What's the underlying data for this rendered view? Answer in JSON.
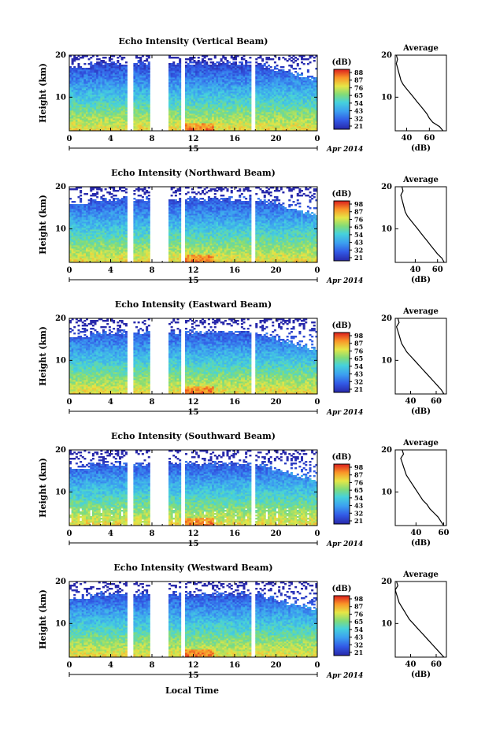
{
  "x_axis_label": "Local Time",
  "chart_data": [
    {
      "type": "heatmap",
      "title": "Echo Intensity (Vertical Beam)",
      "ylabel": "Height (km)",
      "x_ticks": [
        "0",
        "4",
        "8",
        "12",
        "16",
        "20",
        "0"
      ],
      "x_range": [
        0,
        24
      ],
      "date_marker": "15",
      "date_label": "Apr 2014",
      "y_ticks": [
        "20",
        "10"
      ],
      "y_range": [
        2,
        20
      ],
      "data_gaps_hours": [
        [
          5.6,
          6.2
        ],
        [
          7.8,
          9.6
        ],
        [
          10.9,
          11.2
        ],
        [
          17.7,
          17.9
        ]
      ],
      "top_of_data_km": 20,
      "colorbar": {
        "unit": "(dB)",
        "ticks": [
          "88",
          "87",
          "76",
          "65",
          "54",
          "43",
          "32",
          "21"
        ],
        "range": [
          21,
          88
        ]
      },
      "average_profile": {
        "title": "Average",
        "xlabel": "(dB)",
        "x_ticks": [
          "40",
          "60"
        ],
        "x_range": [
          30,
          75
        ],
        "y_ticks": [
          "20",
          "10"
        ],
        "heights_km": [
          2,
          3,
          4,
          5,
          6,
          7,
          8,
          9,
          10,
          11,
          12,
          13,
          14,
          15,
          16,
          17,
          18,
          19,
          20
        ],
        "values_db": [
          72,
          69,
          63,
          60,
          58,
          55,
          52,
          49,
          46,
          43,
          40,
          37,
          35,
          34,
          33,
          32,
          31,
          32,
          31
        ]
      }
    },
    {
      "type": "heatmap",
      "title": "Echo Intensity (Northward Beam)",
      "ylabel": "Height (km)",
      "x_ticks": [
        "0",
        "4",
        "8",
        "12",
        "16",
        "20",
        "0"
      ],
      "x_range": [
        0,
        24
      ],
      "date_marker": "15",
      "date_label": "Apr 2014",
      "y_ticks": [
        "20",
        "10"
      ],
      "y_range": [
        2,
        20
      ],
      "data_gaps_hours": [
        [
          5.6,
          6.2
        ],
        [
          7.8,
          9.6
        ],
        [
          10.9,
          11.2
        ],
        [
          17.7,
          17.9
        ]
      ],
      "top_of_data_km": 19,
      "colorbar": {
        "unit": "(dB)",
        "ticks": [
          "98",
          "87",
          "76",
          "65",
          "54",
          "43",
          "32",
          "21"
        ],
        "range": [
          21,
          98
        ]
      },
      "average_profile": {
        "title": "Average",
        "xlabel": "(dB)",
        "x_ticks": [
          "40",
          "60"
        ],
        "x_range": [
          22,
          68
        ],
        "y_ticks": [
          "20",
          "10"
        ],
        "heights_km": [
          2,
          3,
          4,
          5,
          6,
          7,
          8,
          9,
          10,
          11,
          12,
          13,
          14,
          15,
          16,
          17,
          18,
          19,
          20
        ],
        "values_db": [
          66,
          64,
          60,
          57,
          54,
          51,
          48,
          45,
          42,
          39,
          36,
          33,
          31,
          30,
          29,
          28,
          27,
          29,
          28
        ]
      }
    },
    {
      "type": "heatmap",
      "title": "Echo Intensity (Eastward Beam)",
      "ylabel": "Height (km)",
      "x_ticks": [
        "0",
        "4",
        "8",
        "12",
        "16",
        "20",
        "0"
      ],
      "x_range": [
        0,
        24
      ],
      "date_marker": "15",
      "date_label": "Apr 2014",
      "y_ticks": [
        "20",
        "10"
      ],
      "y_range": [
        2,
        20
      ],
      "data_gaps_hours": [
        [
          5.6,
          6.2
        ],
        [
          7.8,
          9.6
        ],
        [
          10.9,
          11.2
        ],
        [
          17.7,
          17.9
        ]
      ],
      "top_of_data_km": 18.5,
      "colorbar": {
        "unit": "(dB)",
        "ticks": [
          "98",
          "87",
          "76",
          "65",
          "54",
          "43",
          "32",
          "21"
        ],
        "range": [
          21,
          98
        ]
      },
      "average_profile": {
        "title": "Average",
        "xlabel": "(dB)",
        "x_ticks": [
          "40",
          "60"
        ],
        "x_range": [
          28,
          68
        ],
        "y_ticks": [
          "20",
          "10"
        ],
        "heights_km": [
          2,
          3,
          4,
          5,
          6,
          7,
          8,
          9,
          10,
          11,
          12,
          13,
          14,
          15,
          16,
          17,
          18,
          19,
          20
        ],
        "values_db": [
          66,
          64,
          61,
          58,
          55,
          52,
          49,
          46,
          43,
          40,
          37,
          35,
          33,
          32,
          31,
          30,
          29,
          31,
          30
        ]
      }
    },
    {
      "type": "heatmap",
      "title": "Echo Intensity (Southward Beam)",
      "ylabel": "Height (km)",
      "x_ticks": [
        "0",
        "4",
        "8",
        "12",
        "16",
        "20",
        "0"
      ],
      "x_range": [
        0,
        24
      ],
      "date_marker": "15",
      "date_label": "Apr 2014",
      "y_ticks": [
        "20",
        "10"
      ],
      "y_range": [
        2,
        20
      ],
      "data_gaps_hours": [
        [
          5.6,
          6.2
        ],
        [
          7.8,
          9.6
        ],
        [
          10.9,
          11.2
        ],
        [
          17.7,
          17.9
        ]
      ],
      "top_of_data_km": 18.5,
      "colorbar": {
        "unit": "(dB)",
        "ticks": [
          "98",
          "87",
          "76",
          "65",
          "54",
          "43",
          "32",
          "21"
        ],
        "range": [
          21,
          98
        ]
      },
      "average_profile": {
        "title": "Average",
        "xlabel": "(dB)",
        "x_ticks": [
          "40",
          "60"
        ],
        "x_range": [
          25,
          62
        ],
        "y_ticks": [
          "20",
          "10"
        ],
        "heights_km": [
          2,
          3,
          4,
          5,
          6,
          7,
          8,
          9,
          10,
          11,
          12,
          13,
          14,
          15,
          16,
          17,
          18,
          19,
          20
        ],
        "values_db": [
          60,
          58,
          56,
          53,
          50,
          48,
          45,
          43,
          41,
          39,
          37,
          35,
          33,
          32,
          31,
          30,
          29,
          31,
          30
        ]
      }
    },
    {
      "type": "heatmap",
      "title": "Echo Intensity (Westward Beam)",
      "ylabel": "Height (km)",
      "x_ticks": [
        "0",
        "4",
        "8",
        "12",
        "16",
        "20",
        "0"
      ],
      "x_range": [
        0,
        24
      ],
      "date_marker": "15",
      "date_label": "Apr 2014",
      "y_ticks": [
        "20",
        "10"
      ],
      "y_range": [
        2,
        20
      ],
      "data_gaps_hours": [
        [
          5.6,
          6.2
        ],
        [
          7.8,
          9.6
        ],
        [
          10.9,
          11.2
        ],
        [
          17.7,
          17.9
        ]
      ],
      "top_of_data_km": 19,
      "colorbar": {
        "unit": "(dB)",
        "ticks": [
          "98",
          "87",
          "76",
          "65",
          "54",
          "43",
          "32",
          "21"
        ],
        "range": [
          21,
          98
        ]
      },
      "average_profile": {
        "title": "Average",
        "xlabel": "(dB)",
        "x_ticks": [
          "40",
          "60"
        ],
        "x_range": [
          28,
          68
        ],
        "y_ticks": [
          "20",
          "10"
        ],
        "heights_km": [
          2,
          3,
          4,
          5,
          6,
          7,
          8,
          9,
          10,
          11,
          12,
          13,
          14,
          15,
          16,
          17,
          18,
          19,
          20
        ],
        "values_db": [
          66,
          63,
          60,
          57,
          54,
          51,
          48,
          45,
          42,
          39,
          37,
          35,
          33,
          31,
          30,
          29,
          28,
          30,
          29
        ]
      }
    }
  ]
}
